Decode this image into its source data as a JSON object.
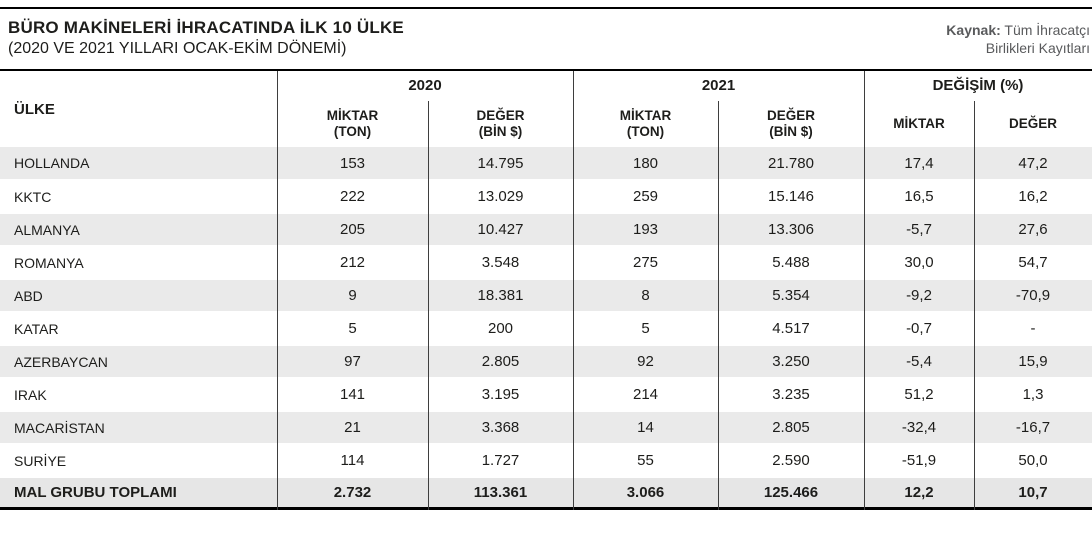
{
  "header": {
    "title": "BÜRO MAKİNELERİ İHRACATINDA İLK 10 ÜLKE",
    "subtitle": "(2020 VE 2021 YILLARI OCAK-EKİM DÖNEMİ)",
    "source_label": "Kaynak:",
    "source_line1_rest": "Tüm İhracatçı",
    "source_line2": "Birlikleri Kayıtları"
  },
  "table_header": {
    "country": "ÜLKE",
    "group_2020": "2020",
    "group_2021": "2021",
    "group_change": "DEĞİŞİM (%)",
    "m2020": {
      "l1": "MİKTAR",
      "l2": "(TON)"
    },
    "d2020": {
      "l1": "DEĞER",
      "l2": "(BİN $)"
    },
    "m2021": {
      "l1": "MİKTAR",
      "l2": "(TON)"
    },
    "d2021": {
      "l1": "DEĞER",
      "l2": "(BİN $)"
    },
    "chg_miktar": "MİKTAR",
    "chg_deger": "DEĞER"
  },
  "chart_data": {
    "type": "table",
    "title": "BÜRO MAKİNELERİ İHRACATINDA İLK 10 ÜLKE",
    "subtitle": "(2020 VE 2021 YILLARI OCAK-EKİM DÖNEMİ)",
    "source": "Kaynak: Tüm İhracatçı Birlikleri Kayıtları",
    "column_groups": [
      "",
      "2020",
      "2021",
      "DEĞİŞİM (%)"
    ],
    "columns": [
      "ÜLKE",
      "2020 MİKTAR (TON)",
      "2020 DEĞER (BİN $)",
      "2021 MİKTAR (TON)",
      "2021 DEĞER (BİN $)",
      "DEĞİŞİM MİKTAR (%)",
      "DEĞİŞİM DEĞER (%)"
    ],
    "rows": [
      {
        "country": "HOLLANDA",
        "values": [
          "153",
          "14.795",
          "180",
          "21.780",
          "17,4",
          "47,2"
        ]
      },
      {
        "country": "KKTC",
        "values": [
          "222",
          "13.029",
          "259",
          "15.146",
          "16,5",
          "16,2"
        ]
      },
      {
        "country": "ALMANYA",
        "values": [
          "205",
          "10.427",
          "193",
          "13.306",
          "-5,7",
          "27,6"
        ]
      },
      {
        "country": "ROMANYA",
        "values": [
          "212",
          "3.548",
          "275",
          "5.488",
          "30,0",
          "54,7"
        ]
      },
      {
        "country": "ABD",
        "values": [
          "9",
          "18.381",
          "8",
          "5.354",
          "-9,2",
          "-70,9"
        ]
      },
      {
        "country": "KATAR",
        "values": [
          "5",
          "200",
          "5",
          "4.517",
          "-0,7",
          "-"
        ]
      },
      {
        "country": "AZERBAYCAN",
        "values": [
          "97",
          "2.805",
          "92",
          "3.250",
          "-5,4",
          "15,9"
        ]
      },
      {
        "country": "IRAK",
        "values": [
          "141",
          "3.195",
          "214",
          "3.235",
          "51,2",
          "1,3"
        ]
      },
      {
        "country": "MACARİSTAN",
        "values": [
          "21",
          "3.368",
          "14",
          "2.805",
          "-32,4",
          "-16,7"
        ]
      },
      {
        "country": "SURİYE",
        "values": [
          "114",
          "1.727",
          "55",
          "2.590",
          "-51,9",
          "50,0"
        ]
      }
    ],
    "total": {
      "country": "MAL GRUBU TOPLAMI",
      "values": [
        "2.732",
        "113.361",
        "3.066",
        "125.466",
        "12,2",
        "10,7"
      ]
    }
  }
}
